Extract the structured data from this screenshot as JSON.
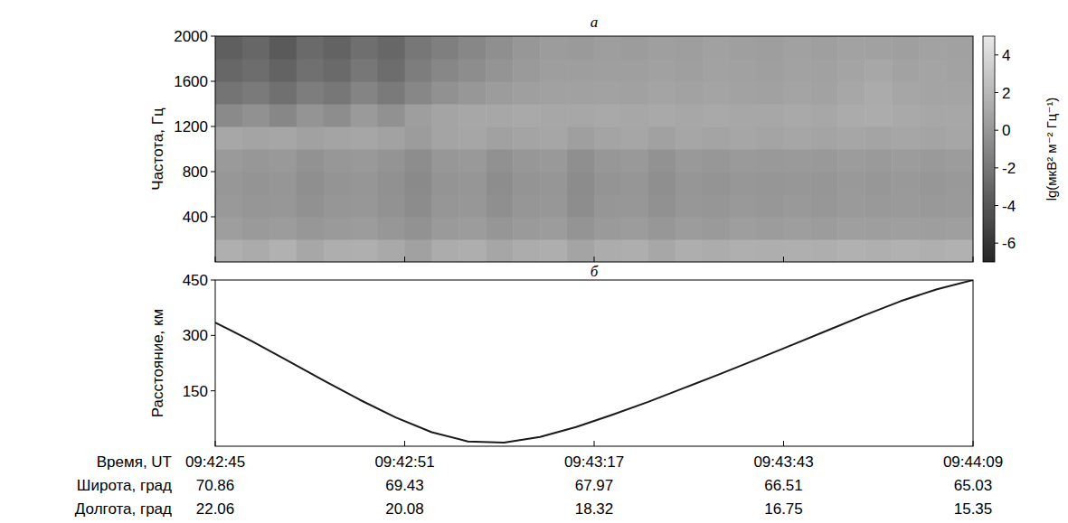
{
  "chart_data": [
    {
      "type": "heatmap",
      "title": "а",
      "ylabel": "Частота, Гц",
      "x_bins": [
        0,
        3,
        6,
        9,
        12,
        15,
        18,
        21,
        24,
        27,
        30,
        33,
        36,
        39,
        42,
        45,
        48,
        51,
        54,
        57,
        60,
        63,
        66,
        69,
        72,
        75,
        78,
        81,
        84
      ],
      "y_bins": [
        0,
        200,
        400,
        600,
        800,
        1000,
        1200,
        1400,
        1600,
        1800,
        2000
      ],
      "cells": [
        [
          1.5,
          1.2,
          1.6,
          1.0,
          1.4,
          1.5,
          1.1,
          0.6,
          1.3,
          1.4,
          0.9,
          1.3,
          1.4,
          0.8,
          1.3,
          1.4,
          1.0,
          1.4,
          1.3,
          1.5,
          1.4,
          1.5,
          1.4,
          1.6,
          1.5,
          1.6,
          1.5,
          1.6
        ],
        [
          0.4,
          0.2,
          0.3,
          0.0,
          0.2,
          0.3,
          0.0,
          -0.3,
          0.2,
          0.3,
          -0.1,
          0.2,
          0.3,
          -0.2,
          0.2,
          0.3,
          0.0,
          0.3,
          0.2,
          0.4,
          0.3,
          0.4,
          0.3,
          0.5,
          0.4,
          0.5,
          0.4,
          0.5
        ],
        [
          0.1,
          -0.1,
          0.0,
          -0.4,
          -0.1,
          0.0,
          -0.3,
          -0.7,
          -0.1,
          0.0,
          -0.5,
          -0.1,
          0.0,
          -0.6,
          -0.1,
          0.0,
          -0.4,
          0.0,
          -0.1,
          0.1,
          0.0,
          0.1,
          0.0,
          0.2,
          0.1,
          0.2,
          0.1,
          0.2
        ],
        [
          0.0,
          -0.2,
          -0.1,
          -0.5,
          -0.2,
          -0.1,
          -0.4,
          -0.8,
          -0.2,
          -0.1,
          -0.6,
          -0.2,
          -0.1,
          -0.7,
          -0.2,
          -0.1,
          -0.5,
          -0.1,
          -0.2,
          0.0,
          -0.1,
          0.0,
          -0.1,
          0.1,
          0.0,
          0.1,
          0.0,
          0.1
        ],
        [
          0.2,
          0.0,
          0.1,
          -0.3,
          0.0,
          0.1,
          -0.2,
          -0.6,
          0.0,
          0.1,
          -0.4,
          0.0,
          0.1,
          -0.5,
          0.0,
          0.1,
          -0.3,
          0.1,
          0.0,
          0.2,
          0.1,
          0.2,
          0.1,
          0.3,
          0.2,
          0.3,
          0.2,
          0.3
        ],
        [
          1.0,
          0.8,
          0.9,
          0.6,
          0.8,
          0.9,
          0.7,
          0.3,
          0.8,
          0.9,
          0.6,
          0.8,
          0.9,
          0.5,
          0.8,
          0.9,
          0.6,
          0.9,
          0.8,
          0.9,
          0.8,
          0.9,
          0.8,
          0.9,
          0.8,
          0.9,
          0.8,
          0.9
        ],
        [
          -0.8,
          -0.4,
          -1.0,
          -0.2,
          -0.6,
          0.2,
          -0.4,
          0.4,
          0.8,
          1.0,
          1.0,
          1.1,
          1.0,
          1.0,
          1.1,
          1.0,
          1.1,
          1.0,
          1.1,
          1.0,
          1.0,
          1.1,
          1.0,
          1.2,
          1.3,
          1.1,
          1.0,
          1.0
        ],
        [
          -2.2,
          -1.8,
          -2.4,
          -1.6,
          -2.0,
          -1.2,
          -1.8,
          -1.0,
          -0.4,
          0.0,
          0.3,
          0.5,
          0.6,
          0.6,
          0.7,
          0.6,
          0.8,
          0.7,
          0.8,
          0.7,
          0.6,
          0.8,
          0.7,
          1.0,
          1.2,
          0.9,
          0.8,
          0.8
        ],
        [
          -3.0,
          -2.6,
          -3.2,
          -2.4,
          -2.8,
          -2.0,
          -2.6,
          -1.6,
          -1.0,
          -0.6,
          -0.2,
          0.2,
          0.4,
          0.4,
          0.5,
          0.5,
          0.6,
          0.5,
          0.7,
          0.6,
          0.5,
          0.7,
          0.6,
          0.8,
          1.0,
          0.7,
          0.8,
          0.7
        ],
        [
          -3.5,
          -3.0,
          -3.8,
          -2.8,
          -3.2,
          -2.5,
          -3.0,
          -2.0,
          -1.5,
          -1.0,
          -0.5,
          0.0,
          0.3,
          0.2,
          0.4,
          0.3,
          0.5,
          0.4,
          0.6,
          0.5,
          0.4,
          0.6,
          0.5,
          0.7,
          0.6,
          0.5,
          0.7,
          0.6
        ]
      ],
      "xlim": [
        0,
        84
      ],
      "ylim": [
        0,
        2000
      ],
      "xticks": [
        0,
        21,
        42,
        63,
        84
      ],
      "yticks": [
        400,
        800,
        1200,
        1600,
        2000
      ],
      "tick_labels": "y",
      "colorbar": {
        "label": "lg(мкВ² м⁻² Гц⁻¹)",
        "range": [
          -7,
          5
        ],
        "ticks": [
          -6,
          -4,
          -2,
          0,
          2,
          4
        ]
      }
    },
    {
      "type": "line",
      "title": "б",
      "ylabel": "Расстояние, км",
      "xlabel": "Время, UT",
      "x": [
        0,
        4,
        8,
        12,
        16,
        20,
        24,
        28,
        32,
        36,
        40,
        44,
        48,
        52,
        56,
        60,
        64,
        68,
        72,
        76,
        80,
        84
      ],
      "values": [
        335,
        285,
        232,
        178,
        126,
        78,
        38,
        13,
        10,
        25,
        52,
        85,
        120,
        158,
        196,
        235,
        275,
        315,
        355,
        393,
        425,
        450
      ],
      "color": "#1a1a1a",
      "xlim": [
        0,
        84
      ],
      "ylim": [
        0,
        450
      ],
      "xticks": [
        {
          "value": 0,
          "label": "09:42:45"
        },
        {
          "value": 21,
          "label": "09:42:51"
        },
        {
          "value": 42,
          "label": "09:43:17"
        },
        {
          "value": 63,
          "label": "09:43:43"
        },
        {
          "value": 84,
          "label": "09:44:09"
        }
      ],
      "yticks": [
        150,
        300,
        450
      ],
      "extra_tick_rows": [
        {
          "label": "Широта, град",
          "values": [
            70.86,
            69.43,
            67.97,
            66.51,
            65.03
          ]
        },
        {
          "label": "Долгота, град",
          "values": [
            22.06,
            20.08,
            18.32,
            16.75,
            15.35
          ]
        }
      ]
    }
  ]
}
